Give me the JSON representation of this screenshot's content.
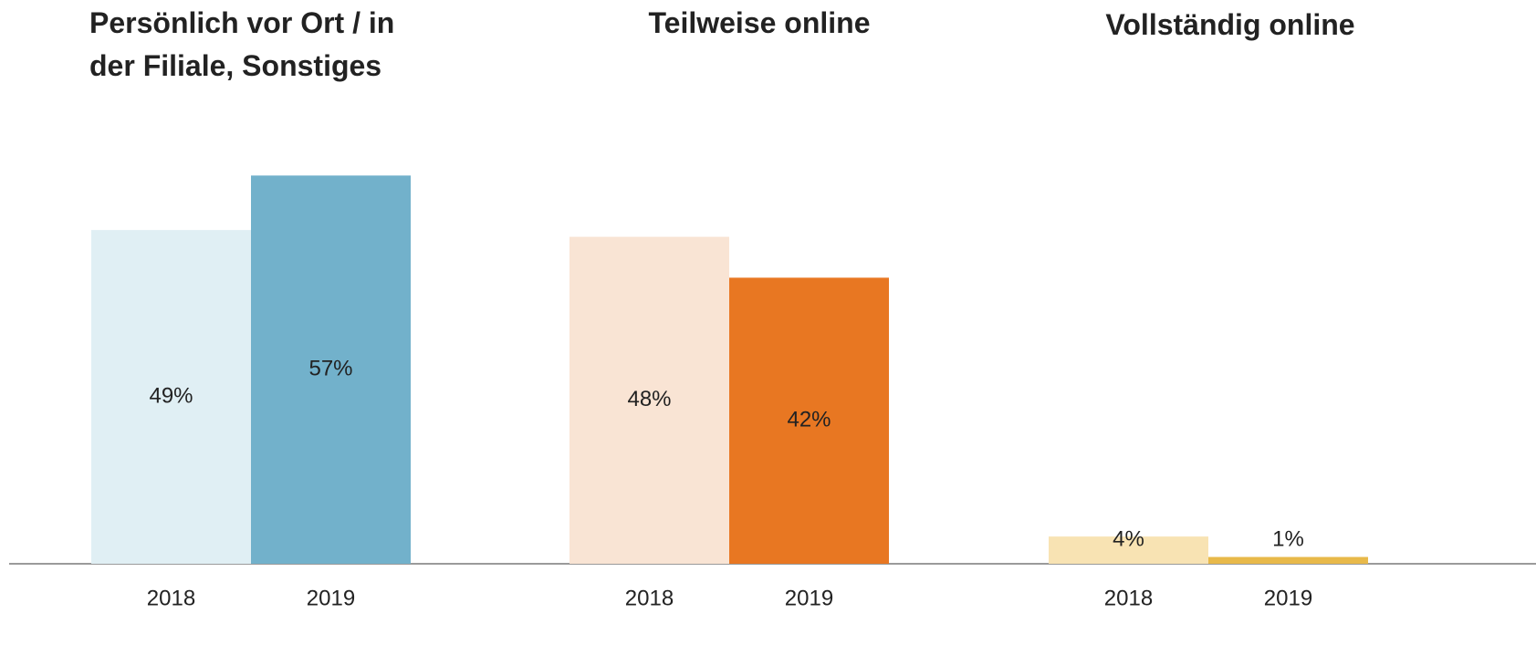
{
  "chart_data": [
    {
      "type": "bar",
      "title": "Persönlich vor Ort / in der Filiale, Sonstiges",
      "categories": [
        "2018",
        "2019"
      ],
      "values": [
        49,
        57
      ],
      "value_labels": [
        "49%",
        "57%"
      ],
      "colors": [
        "#e0eff4",
        "#72b1cb"
      ],
      "ylim": [
        0,
        60
      ]
    },
    {
      "type": "bar",
      "title": "Teilweise online",
      "categories": [
        "2018",
        "2019"
      ],
      "values": [
        48,
        42
      ],
      "value_labels": [
        "48%",
        "42%"
      ],
      "colors": [
        "#f9e4d4",
        "#e87722"
      ],
      "ylim": [
        0,
        60
      ]
    },
    {
      "type": "bar",
      "title": "Vollständig online",
      "categories": [
        "2018",
        "2019"
      ],
      "values": [
        4,
        1
      ],
      "value_labels": [
        "4%",
        "1%"
      ],
      "colors": [
        "#f8e3b3",
        "#e8b94a"
      ],
      "ylim": [
        0,
        60
      ]
    }
  ]
}
